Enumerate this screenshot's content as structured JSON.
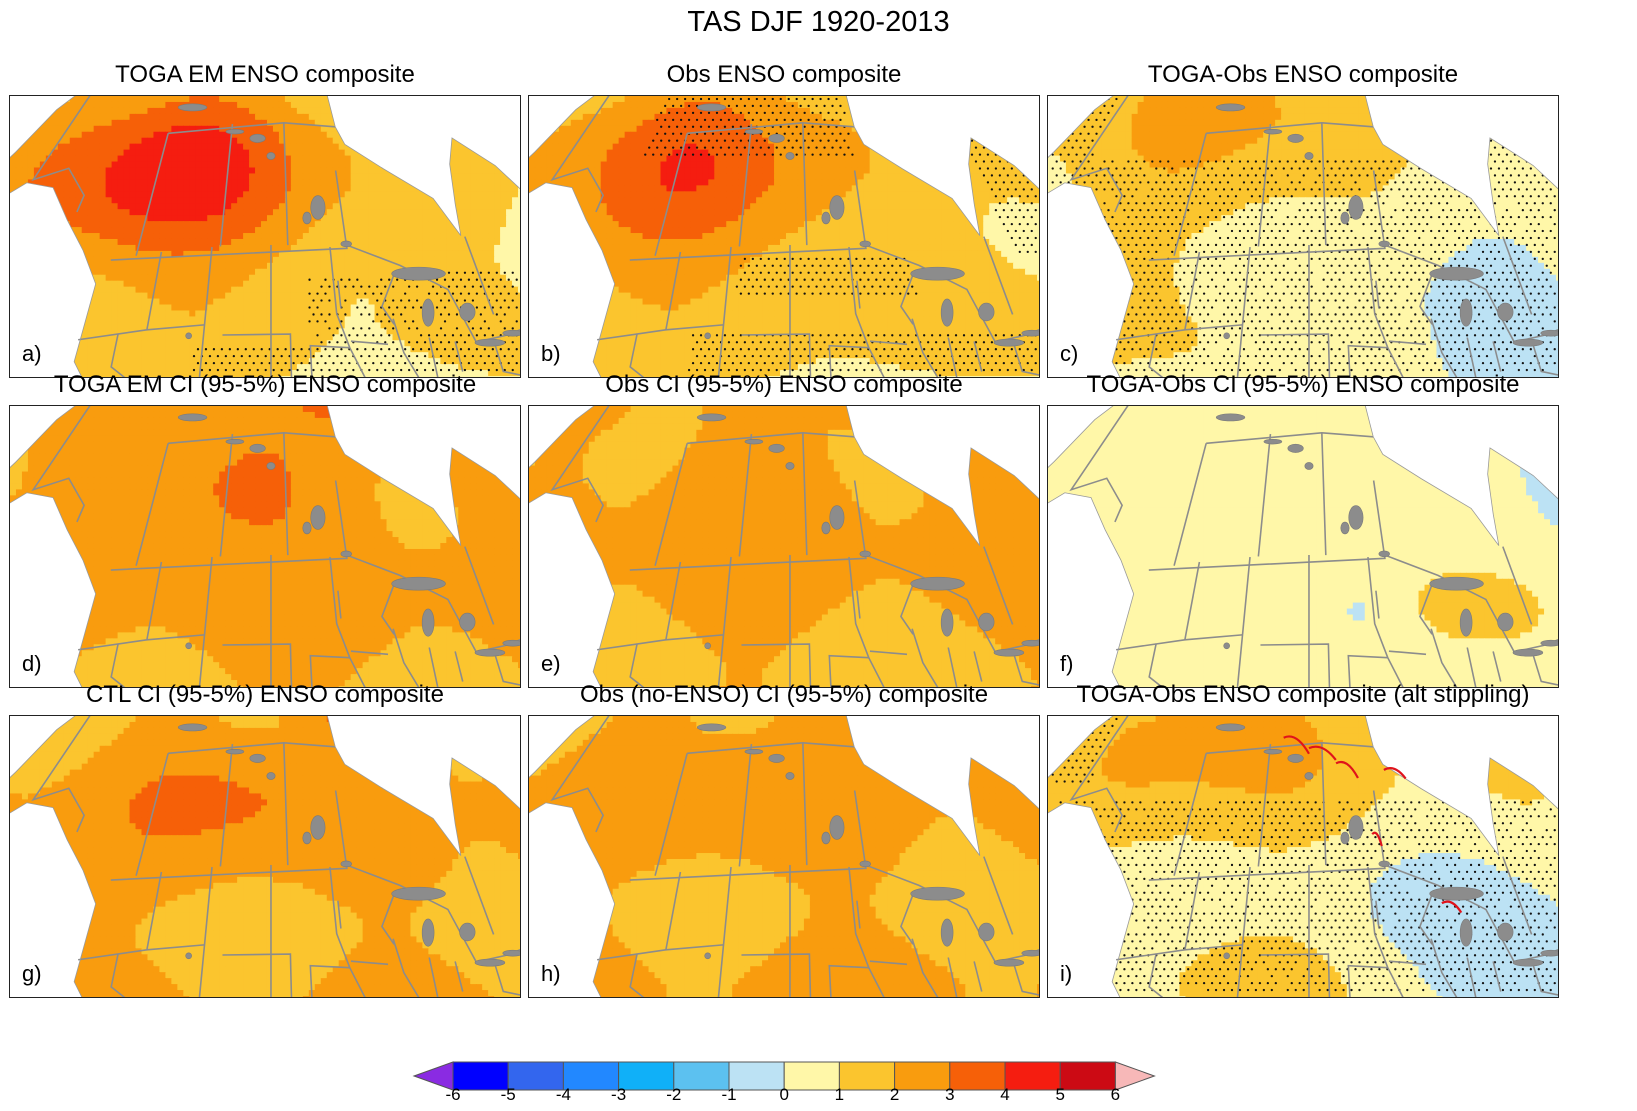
{
  "title": "TAS DJF 1920-2013",
  "panels": [
    {
      "title": "TOGA EM ENSO composite",
      "letter": "a)",
      "type": "composite",
      "pattern": {
        "base": 1,
        "nw": 3.6,
        "nwLat": 55,
        "dip": 0,
        "southeast": -1.8,
        "southeastLat": 31,
        "eastLowP": 0
      },
      "stipple": "toga"
    },
    {
      "title": "Obs ENSO composite",
      "letter": "b)",
      "type": "composite",
      "pattern": {
        "base": 1,
        "nw": 2.9,
        "nwLat": 55,
        "dip": 0.3,
        "southeast": -1.9,
        "southeastLat": 31,
        "eastLowP": 0.4
      },
      "stipple": "obs"
    },
    {
      "title": "TOGA-Obs ENSO composite",
      "letter": "c)",
      "type": "composite",
      "pattern": {
        "base": 0.7,
        "nw": 1.6,
        "nwLat": 60,
        "dip": 0,
        "southeast": -0.6,
        "southeastLat": 45,
        "eastLowP": -1.2
      },
      "stipple": "diff"
    },
    {
      "title": "TOGA EM CI (95-5%) ENSO composite",
      "letter": "d)",
      "type": "ci",
      "pattern": {
        "base": 2.1,
        "band": 2.2,
        "alaska": 2.1,
        "south": -1.0
      }
    },
    {
      "title": "Obs CI (95-5%) ENSO composite",
      "letter": "e)",
      "type": "ci",
      "pattern": {
        "base": 2.0,
        "band": 1.2,
        "alaska": 1.0,
        "south": -1.0
      }
    },
    {
      "title": "TOGA-Obs CI (95-5%) ENSO composite",
      "letter": "f)",
      "type": "cidiff",
      "pattern": {
        "base": 0.55,
        "band": 0.8,
        "alaska": 0.8,
        "south": -0.1
      }
    },
    {
      "title": "CTL CI (95-5%) ENSO composite",
      "letter": "g)",
      "type": "ci",
      "pattern": {
        "base": 2.0,
        "band": 2.1,
        "alaska": 2.0,
        "south": -1.0
      }
    },
    {
      "title": "Obs (no-ENSO) CI (95-5%) composite",
      "letter": "h)",
      "type": "ci",
      "pattern": {
        "base": 2.0,
        "band": 1.1,
        "alaska": 0.8,
        "south": -1.0
      }
    },
    {
      "title": "TOGA-Obs ENSO composite (alt stippling)",
      "letter": "i)",
      "type": "composite",
      "pattern": {
        "base": 0.7,
        "nw": 1.6,
        "nwLat": 60,
        "dip": 0,
        "southeast": -0.6,
        "southeastLat": 45,
        "eastLowP": -1.2
      },
      "stipple": "alt"
    }
  ],
  "colorbar": {
    "levels": [
      "-6",
      "-5",
      "-4",
      "-3",
      "-2",
      "-1",
      "0",
      "1",
      "2",
      "3",
      "4",
      "5",
      "6"
    ],
    "colors": [
      "#8a2be2",
      "#0000ff",
      "#3366ee",
      "#2288ff",
      "#10b0f8",
      "#5cc1f0",
      "#bce2f4",
      "#fff7a8",
      "#fbc52e",
      "#f99c0e",
      "#f66008",
      "#f51d10",
      "#cc0a14",
      "#f7b8b8"
    ]
  },
  "style": {
    "ocean": "#ffffff",
    "border": "#8c8c8c",
    "lake": "#8c8c8c",
    "frame": "#222222",
    "stipple": "#111111"
  }
}
